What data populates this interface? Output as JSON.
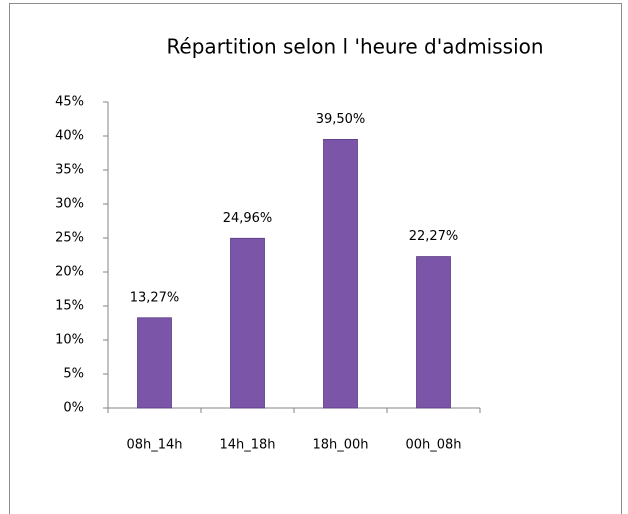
{
  "chart_data": {
    "type": "bar",
    "title": "Répartition selon l 'heure  d'admission",
    "categories": [
      "08h_14h",
      "14h_18h",
      "18h_00h",
      "00h_08h"
    ],
    "values": [
      13.27,
      24.96,
      39.5,
      22.27
    ],
    "value_labels": [
      "13,27%",
      "24,96%",
      "39,50%",
      "22,27%"
    ],
    "color": "#7a55a8",
    "ylim": [
      0,
      45
    ],
    "yticks": [
      {
        "value": 0,
        "label": "0%"
      },
      {
        "value": 5,
        "label": "5%"
      },
      {
        "value": 10,
        "label": "10%"
      },
      {
        "value": 15,
        "label": "15%"
      },
      {
        "value": 20,
        "label": "20%"
      },
      {
        "value": 25,
        "label": "25%"
      },
      {
        "value": 30,
        "label": "30%"
      },
      {
        "value": 35,
        "label": "35%"
      },
      {
        "value": 40,
        "label": "40%"
      },
      {
        "value": 45,
        "label": "45%"
      }
    ],
    "grid": false
  }
}
